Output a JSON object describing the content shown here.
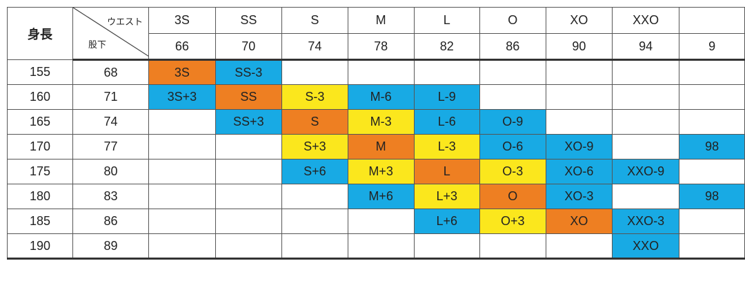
{
  "labels": {
    "height": "身長",
    "waist": "ウエスト",
    "inseam": "股下"
  },
  "colors": {
    "orange": "#ee7f22",
    "blue": "#18aae4",
    "yellow": "#fbe71d"
  },
  "columns": [
    {
      "name": "3S",
      "waist": "66"
    },
    {
      "name": "SS",
      "waist": "70"
    },
    {
      "name": "S",
      "waist": "74"
    },
    {
      "name": "M",
      "waist": "78"
    },
    {
      "name": "L",
      "waist": "82"
    },
    {
      "name": "O",
      "waist": "86"
    },
    {
      "name": "XO",
      "waist": "90"
    },
    {
      "name": "XXO",
      "waist": "94"
    },
    {
      "name": "",
      "waist": "9"
    }
  ],
  "rows": [
    {
      "height": "155",
      "inseam": "68",
      "cells": [
        {
          "text": "3S",
          "color": "orange"
        },
        {
          "text": "SS-3",
          "color": "blue"
        },
        {
          "text": "",
          "color": ""
        },
        {
          "text": "",
          "color": ""
        },
        {
          "text": "",
          "color": ""
        },
        {
          "text": "",
          "color": ""
        },
        {
          "text": "",
          "color": ""
        },
        {
          "text": "",
          "color": ""
        },
        {
          "text": "",
          "color": ""
        }
      ]
    },
    {
      "height": "160",
      "inseam": "71",
      "cells": [
        {
          "text": "3S+3",
          "color": "blue"
        },
        {
          "text": "SS",
          "color": "orange"
        },
        {
          "text": "S-3",
          "color": "yellow"
        },
        {
          "text": "M-6",
          "color": "blue"
        },
        {
          "text": "L-9",
          "color": "blue"
        },
        {
          "text": "",
          "color": ""
        },
        {
          "text": "",
          "color": ""
        },
        {
          "text": "",
          "color": ""
        },
        {
          "text": "",
          "color": ""
        }
      ]
    },
    {
      "height": "165",
      "inseam": "74",
      "cells": [
        {
          "text": "",
          "color": ""
        },
        {
          "text": "SS+3",
          "color": "blue"
        },
        {
          "text": "S",
          "color": "orange"
        },
        {
          "text": "M-3",
          "color": "yellow"
        },
        {
          "text": "L-6",
          "color": "blue"
        },
        {
          "text": "O-9",
          "color": "blue"
        },
        {
          "text": "",
          "color": ""
        },
        {
          "text": "",
          "color": ""
        },
        {
          "text": "",
          "color": ""
        }
      ]
    },
    {
      "height": "170",
      "inseam": "77",
      "cells": [
        {
          "text": "",
          "color": ""
        },
        {
          "text": "",
          "color": ""
        },
        {
          "text": "S+3",
          "color": "yellow"
        },
        {
          "text": "M",
          "color": "orange"
        },
        {
          "text": "L-3",
          "color": "yellow"
        },
        {
          "text": "O-6",
          "color": "blue"
        },
        {
          "text": "XO-9",
          "color": "blue"
        },
        {
          "text": "",
          "color": ""
        },
        {
          "text": "98",
          "color": "blue"
        }
      ]
    },
    {
      "height": "175",
      "inseam": "80",
      "cells": [
        {
          "text": "",
          "color": ""
        },
        {
          "text": "",
          "color": ""
        },
        {
          "text": "S+6",
          "color": "blue"
        },
        {
          "text": "M+3",
          "color": "yellow"
        },
        {
          "text": "L",
          "color": "orange"
        },
        {
          "text": "O-3",
          "color": "yellow"
        },
        {
          "text": "XO-6",
          "color": "blue"
        },
        {
          "text": "XXO-9",
          "color": "blue"
        },
        {
          "text": "",
          "color": ""
        }
      ]
    },
    {
      "height": "180",
      "inseam": "83",
      "cells": [
        {
          "text": "",
          "color": ""
        },
        {
          "text": "",
          "color": ""
        },
        {
          "text": "",
          "color": ""
        },
        {
          "text": "M+6",
          "color": "blue"
        },
        {
          "text": "L+3",
          "color": "yellow"
        },
        {
          "text": "O",
          "color": "orange"
        },
        {
          "text": "XO-3",
          "color": "blue"
        },
        {
          "text": "",
          "color": ""
        },
        {
          "text": "98",
          "color": "blue"
        }
      ]
    },
    {
      "height": "185",
      "inseam": "86",
      "cells": [
        {
          "text": "",
          "color": ""
        },
        {
          "text": "",
          "color": ""
        },
        {
          "text": "",
          "color": ""
        },
        {
          "text": "",
          "color": ""
        },
        {
          "text": "L+6",
          "color": "blue"
        },
        {
          "text": "O+3",
          "color": "yellow"
        },
        {
          "text": "XO",
          "color": "orange"
        },
        {
          "text": "XXO-3",
          "color": "blue"
        },
        {
          "text": "",
          "color": ""
        }
      ]
    },
    {
      "height": "190",
      "inseam": "89",
      "cells": [
        {
          "text": "",
          "color": ""
        },
        {
          "text": "",
          "color": ""
        },
        {
          "text": "",
          "color": ""
        },
        {
          "text": "",
          "color": ""
        },
        {
          "text": "",
          "color": ""
        },
        {
          "text": "",
          "color": ""
        },
        {
          "text": "",
          "color": ""
        },
        {
          "text": "XXO",
          "color": "blue"
        },
        {
          "text": "",
          "color": ""
        }
      ]
    }
  ]
}
